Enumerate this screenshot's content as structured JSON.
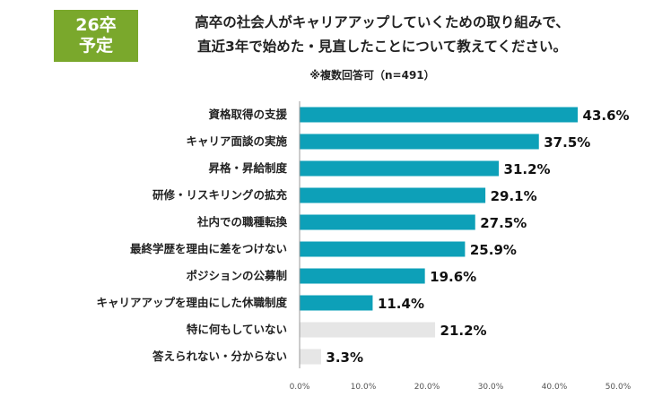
{
  "badge": {
    "line1": "26卒",
    "line2": "予定"
  },
  "header": {
    "title_line1": "高卒の社会人がキャリアアップしていくための取り組みで、",
    "title_line2": "直近3年で始めた・見直したことについて教えてください。",
    "note": "※複数回答可（n=491）"
  },
  "colors": {
    "bar": "#0da0b8",
    "bar_muted": "#e6e6e6",
    "badge": "#7aa82c"
  },
  "chart_data": {
    "type": "bar",
    "orientation": "horizontal",
    "title": "高卒の社会人がキャリアアップしていくための取り組みで、直近3年で始めた・見直したことについて教えてください。",
    "subtitle": "※複数回答可（n=491）",
    "categories": [
      "資格取得の支援",
      "キャリア面談の実施",
      "昇格・昇給制度",
      "研修・リスキリングの拡充",
      "社内での職種転換",
      "最終学歴を理由に差をつけない",
      "ポジションの公募制",
      "キャリアアップを理由にした休職制度",
      "特に何もしていない",
      "答えられない・分からない"
    ],
    "values": [
      43.6,
      37.5,
      31.2,
      29.1,
      27.5,
      25.9,
      19.6,
      11.4,
      21.2,
      3.3
    ],
    "value_labels": [
      "43.6%",
      "37.5%",
      "31.2%",
      "29.1%",
      "27.5%",
      "25.9%",
      "19.6%",
      "11.4%",
      "21.2%",
      "3.3%"
    ],
    "muted": [
      false,
      false,
      false,
      false,
      false,
      false,
      false,
      false,
      true,
      true
    ],
    "xlim": [
      0,
      50
    ],
    "ticks": [
      0,
      10,
      20,
      30,
      40,
      50
    ],
    "tick_labels": [
      "0.0%",
      "10.0%",
      "20.0%",
      "30.0%",
      "40.0%",
      "50.0%"
    ],
    "grid": false,
    "legend": "none"
  }
}
